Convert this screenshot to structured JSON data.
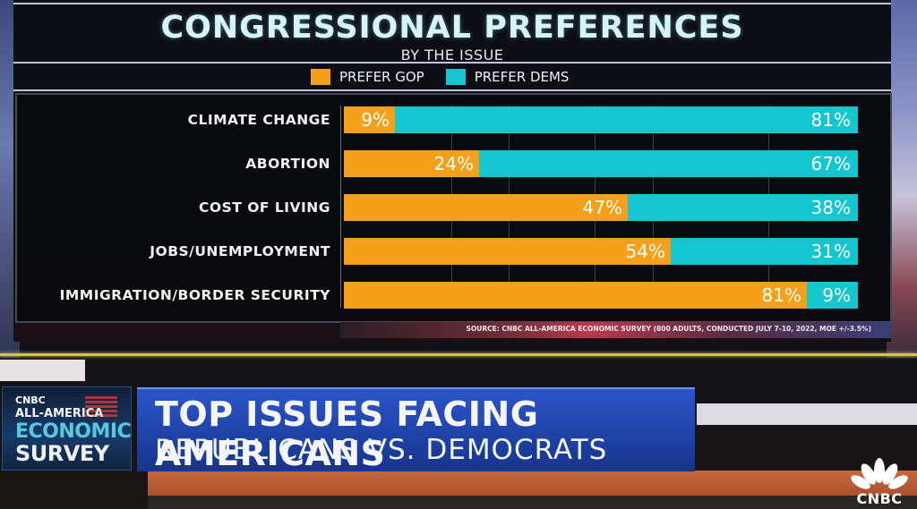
{
  "chart_data": {
    "type": "bar",
    "orientation": "horizontal",
    "stacked": true,
    "normalized_to_visible_total": true,
    "title": "CONGRESSIONAL PREFERENCES",
    "subtitle": "BY THE ISSUE",
    "categories": [
      "CLIMATE CHANGE",
      "ABORTION",
      "COST OF LIVING",
      "JOBS/UNEMPLOYMENT",
      "IMMIGRATION/BORDER SECURITY"
    ],
    "series": [
      {
        "name": "PREFER GOP",
        "color": "#f5a01a",
        "values": [
          9,
          24,
          47,
          54,
          81
        ]
      },
      {
        "name": "PREFER DEMS",
        "color": "#14c6d0",
        "values": [
          81,
          67,
          38,
          31,
          9
        ]
      }
    ],
    "value_suffix": "%",
    "legend_position": "top-center",
    "grid": true,
    "source": "SOURCE: CNBC ALL-AMERICA ECONOMIC SURVEY (800 ADULTS, CONDUCTED JULY 7-10, 2022, MOE +/-3.5%)"
  },
  "lower_third": {
    "logo": {
      "brand": "CNBC",
      "line1": "ALL-AMERICA",
      "line2": "ECONOMIC",
      "line3": "SURVEY"
    },
    "headline": "TOP ISSUES FACING AMERICANS",
    "subheadline": "REPUBLICANS VS. DEMOCRATS"
  },
  "network_bug": {
    "text": "CNBC",
    "icon": "peacock-icon"
  }
}
